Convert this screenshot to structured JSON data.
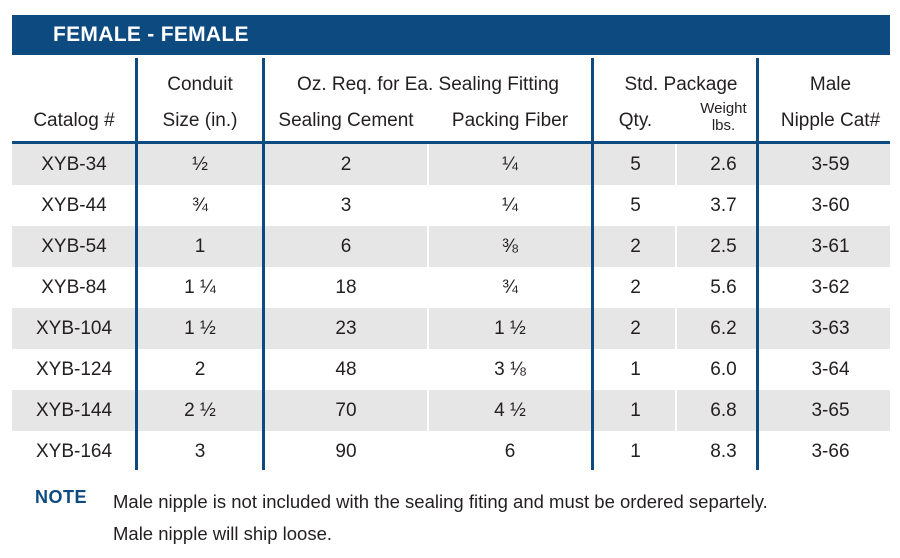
{
  "banner": {
    "title": "FEMALE - FEMALE"
  },
  "headers": {
    "catalog": "Catalog #",
    "conduit_line1": "Conduit",
    "conduit_line2": "Size (in.)",
    "oz_group": "Oz. Req. for Ea. Sealing Fitting",
    "sealing_cement": "Sealing Cement",
    "packing_fiber": "Packing Fiber",
    "std_group": "Std. Package",
    "qty": "Qty.",
    "weight_line1": "Weight",
    "weight_line2": "lbs.",
    "male_line1": "Male",
    "male_line2": "Nipple Cat#"
  },
  "rows": [
    {
      "catalog": "XYB-34",
      "size": "½",
      "cement": "2",
      "fiber": "¼",
      "qty": "5",
      "weight": "2.6",
      "nipple": "3-59"
    },
    {
      "catalog": "XYB-44",
      "size": "¾",
      "cement": "3",
      "fiber": "¼",
      "qty": "5",
      "weight": "3.7",
      "nipple": "3-60"
    },
    {
      "catalog": "XYB-54",
      "size": "1",
      "cement": "6",
      "fiber": "⅜",
      "qty": "2",
      "weight": "2.5",
      "nipple": "3-61"
    },
    {
      "catalog": "XYB-84",
      "size": "1 ¼",
      "cement": "18",
      "fiber": "¾",
      "qty": "2",
      "weight": "5.6",
      "nipple": "3-62"
    },
    {
      "catalog": "XYB-104",
      "size": "1 ½",
      "cement": "23",
      "fiber": "1 ½",
      "qty": "2",
      "weight": "6.2",
      "nipple": "3-63"
    },
    {
      "catalog": "XYB-124",
      "size": "2",
      "cement": "48",
      "fiber": "3 ⅛",
      "qty": "1",
      "weight": "6.0",
      "nipple": "3-64"
    },
    {
      "catalog": "XYB-144",
      "size": "2 ½",
      "cement": "70",
      "fiber": "4 ½",
      "qty": "1",
      "weight": "6.8",
      "nipple": "3-65"
    },
    {
      "catalog": "XYB-164",
      "size": "3",
      "cement": "90",
      "fiber": "6",
      "qty": "1",
      "weight": "8.3",
      "nipple": "3-66"
    }
  ],
  "note": {
    "label": "NOTE",
    "line1": "Male nipple is not included with the sealing fiting and must be ordered separtely.",
    "line2": "Male nipple will ship loose."
  },
  "colors": {
    "brand_blue": "#0d4a80",
    "row_shade": "#e6e6e7"
  }
}
